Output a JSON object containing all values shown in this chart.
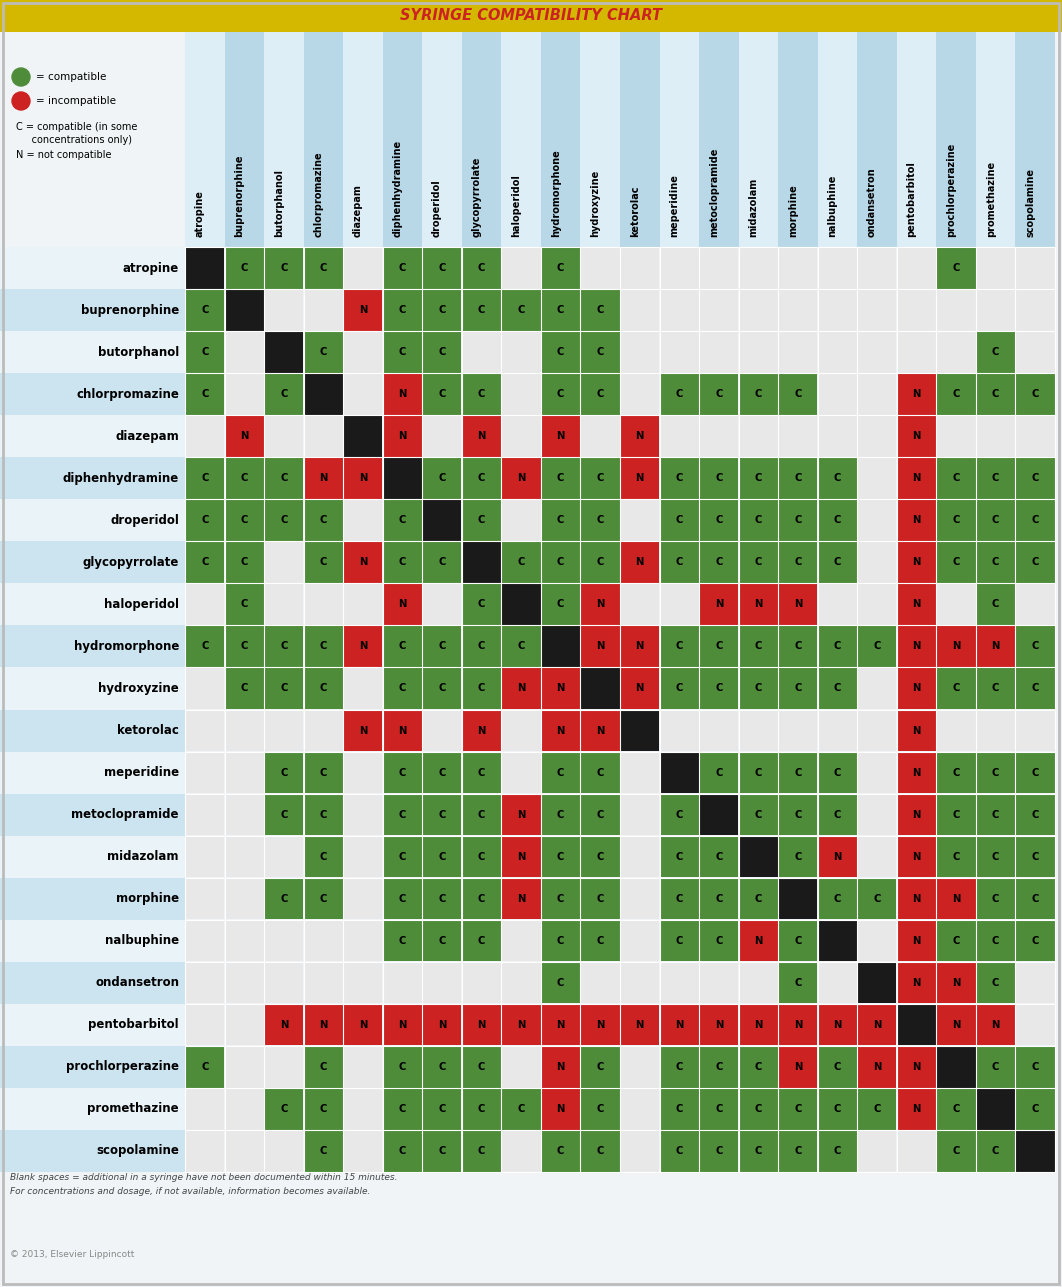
{
  "title": "SYRINGE COMPATIBILITY CHART",
  "title_bg": "#D4B800",
  "drugs": [
    "atropine",
    "buprenorphine",
    "butorphanol",
    "chlorpromazine",
    "diazepam",
    "diphenhydramine",
    "droperidol",
    "glycopyrrolate",
    "haloperidol",
    "hydromorphone",
    "hydroxyzine",
    "ketorolac",
    "meperidine",
    "metoclopramide",
    "midazolam",
    "morphine",
    "nalbuphine",
    "ondansetron",
    "pentobarbitol",
    "prochlorperazine",
    "promethazine",
    "scopolamine"
  ],
  "compat_matrix": [
    [
      "X",
      "C",
      "C",
      "C",
      " ",
      "C",
      "C",
      "C",
      " ",
      "C",
      " ",
      " ",
      " ",
      " ",
      " ",
      " ",
      " ",
      " ",
      " ",
      "C",
      " ",
      " "
    ],
    [
      "C",
      "X",
      " ",
      " ",
      "N",
      "C",
      "C",
      "C",
      "C",
      "C",
      "C",
      " ",
      " ",
      " ",
      " ",
      " ",
      " ",
      " ",
      " ",
      " ",
      " ",
      " "
    ],
    [
      "C",
      " ",
      "X",
      "C",
      " ",
      "C",
      "C",
      " ",
      " ",
      "C",
      "C",
      " ",
      " ",
      " ",
      " ",
      " ",
      " ",
      " ",
      " ",
      " ",
      "C",
      " "
    ],
    [
      "C",
      " ",
      "C",
      "X",
      " ",
      "N",
      "C",
      "C",
      " ",
      "C",
      "C",
      " ",
      "C",
      "C",
      "C",
      "C",
      " ",
      " ",
      "N",
      "C",
      "C",
      "C"
    ],
    [
      " ",
      "N",
      " ",
      " ",
      "X",
      "N",
      " ",
      "N",
      " ",
      "N",
      " ",
      "N",
      " ",
      " ",
      " ",
      " ",
      " ",
      " ",
      "N",
      " ",
      " ",
      " "
    ],
    [
      "C",
      "C",
      "C",
      "N",
      "N",
      "X",
      "C",
      "C",
      "N",
      "C",
      "C",
      "N",
      "C",
      "C",
      "C",
      "C",
      "C",
      " ",
      "N",
      "C",
      "C",
      "C"
    ],
    [
      "C",
      "C",
      "C",
      "C",
      " ",
      "C",
      "X",
      "C",
      " ",
      "C",
      "C",
      " ",
      "C",
      "C",
      "C",
      "C",
      "C",
      " ",
      "N",
      "C",
      "C",
      "C"
    ],
    [
      "C",
      "C",
      " ",
      "C",
      "N",
      "C",
      "C",
      "X",
      "C",
      "C",
      "C",
      "N",
      "C",
      "C",
      "C",
      "C",
      "C",
      " ",
      "N",
      "C",
      "C",
      "C"
    ],
    [
      " ",
      "C",
      " ",
      " ",
      " ",
      "N",
      " ",
      "C",
      "X",
      "C",
      "N",
      " ",
      " ",
      "N",
      "N",
      "N",
      " ",
      " ",
      "N",
      " ",
      "C",
      " "
    ],
    [
      "C",
      "C",
      "C",
      "C",
      "N",
      "C",
      "C",
      "C",
      "C",
      "X",
      "N",
      "N",
      "C",
      "C",
      "C",
      "C",
      "C",
      "C",
      "N",
      "N",
      "N",
      "C"
    ],
    [
      " ",
      "C",
      "C",
      "C",
      " ",
      "C",
      "C",
      "C",
      "N",
      "N",
      "X",
      "N",
      "C",
      "C",
      "C",
      "C",
      "C",
      " ",
      "N",
      "C",
      "C",
      "C"
    ],
    [
      " ",
      " ",
      " ",
      " ",
      "N",
      "N",
      " ",
      "N",
      " ",
      "N",
      "N",
      "X",
      " ",
      " ",
      " ",
      " ",
      " ",
      " ",
      "N",
      " ",
      " ",
      " "
    ],
    [
      " ",
      " ",
      "C",
      "C",
      " ",
      "C",
      "C",
      "C",
      " ",
      "C",
      "C",
      " ",
      "X",
      "C",
      "C",
      "C",
      "C",
      " ",
      "N",
      "C",
      "C",
      "C"
    ],
    [
      " ",
      " ",
      "C",
      "C",
      " ",
      "C",
      "C",
      "C",
      "N",
      "C",
      "C",
      " ",
      "C",
      "X",
      "C",
      "C",
      "C",
      " ",
      "N",
      "C",
      "C",
      "C"
    ],
    [
      " ",
      " ",
      " ",
      "C",
      " ",
      "C",
      "C",
      "C",
      "N",
      "C",
      "C",
      " ",
      "C",
      "C",
      "X",
      "C",
      "N",
      " ",
      "N",
      "C",
      "C",
      "C"
    ],
    [
      " ",
      " ",
      "C",
      "C",
      " ",
      "C",
      "C",
      "C",
      "N",
      "C",
      "C",
      " ",
      "C",
      "C",
      "C",
      "X",
      "C",
      "C",
      "N",
      "N",
      "C",
      "C"
    ],
    [
      " ",
      " ",
      " ",
      " ",
      " ",
      "C",
      "C",
      "C",
      " ",
      "C",
      "C",
      " ",
      "C",
      "C",
      "N",
      "C",
      "X",
      " ",
      "N",
      "C",
      "C",
      "C"
    ],
    [
      " ",
      " ",
      " ",
      " ",
      " ",
      " ",
      " ",
      " ",
      " ",
      "C",
      " ",
      " ",
      " ",
      " ",
      " ",
      "C",
      " ",
      "X",
      "N",
      "N",
      "C",
      " "
    ],
    [
      " ",
      " ",
      "N",
      "N",
      "N",
      "N",
      "N",
      "N",
      "N",
      "N",
      "N",
      "N",
      "N",
      "N",
      "N",
      "N",
      "N",
      "N",
      "X",
      "N",
      "N",
      " "
    ],
    [
      "C",
      " ",
      " ",
      "C",
      " ",
      "C",
      "C",
      "C",
      " ",
      "N",
      "C",
      " ",
      "C",
      "C",
      "C",
      "N",
      "C",
      "N",
      "N",
      "X",
      "C",
      "C"
    ],
    [
      " ",
      " ",
      "C",
      "C",
      " ",
      "C",
      "C",
      "C",
      "C",
      "N",
      "C",
      " ",
      "C",
      "C",
      "C",
      "C",
      "C",
      "C",
      "N",
      "C",
      "X",
      "C"
    ],
    [
      " ",
      " ",
      " ",
      "C",
      " ",
      "C",
      "C",
      "C",
      " ",
      "C",
      "C",
      " ",
      "C",
      "C",
      "C",
      "C",
      "C",
      " ",
      " ",
      "C",
      "C",
      "X"
    ]
  ],
  "color_compatible": "#4e8c3a",
  "color_incompatible": "#cc2222",
  "color_diagonal": "#1a1a1a",
  "color_unknown_white": "#e8e8e8",
  "color_header_bg_blue": "#b8d8e8",
  "color_header_bg_white": "#ddeef6",
  "color_row_alt": "#cce4f0",
  "color_row_normal": "#eaf4f8",
  "footnote1": "Blank spaces = additional in a syringe have not been documented within 15 minutes.",
  "footnote2": "For concentrations and dosage, if not available, information becomes available.",
  "copyright": "© 2013, Elsevier Lippincott"
}
